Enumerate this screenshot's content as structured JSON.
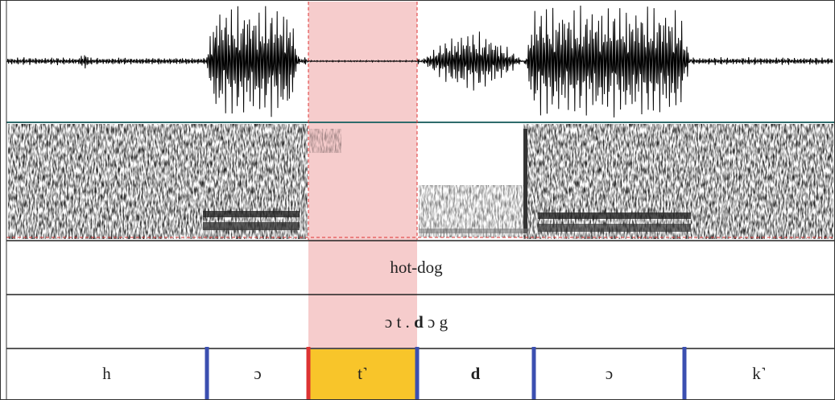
{
  "tiers": {
    "word": {
      "label": "hot-dog"
    },
    "syllables": {
      "parts": [
        "ɔ t .",
        "d",
        "ɔ g"
      ]
    },
    "segments": {
      "labels": [
        "h",
        "ɔ",
        "t˺",
        "d",
        "ɔ",
        "k˺"
      ]
    }
  }
}
